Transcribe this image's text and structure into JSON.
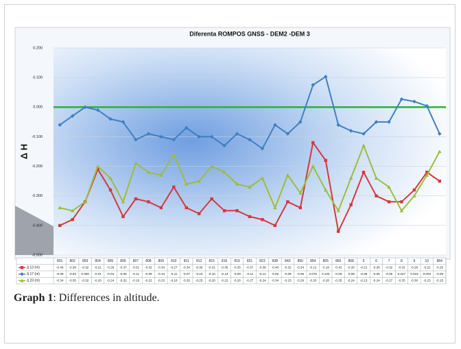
{
  "chart_data": {
    "type": "line",
    "title": "Diferenta  ROMPOS GNSS - DEM2 -DEM 3",
    "y_label": "Δ H",
    "categories": [
      "801",
      "802",
      "803",
      "804",
      "805",
      "806",
      "807",
      "808",
      "809",
      "810",
      "811",
      "812",
      "815",
      "816",
      "819",
      "821",
      "823",
      "838",
      "843",
      "850",
      "854",
      "855",
      "865",
      "868",
      "5",
      "6",
      "7",
      "8",
      "9",
      "10",
      "864"
    ],
    "series": [
      {
        "name": "Δ 13 (m)",
        "color": "#d2383c",
        "marker": "square",
        "values": [
          -0.4,
          -0.38,
          -0.32,
          -0.21,
          -0.28,
          -0.37,
          -0.31,
          -0.32,
          -0.34,
          -0.27,
          -0.34,
          -0.36,
          -0.31,
          -0.35,
          -0.35,
          -0.37,
          -0.38,
          -0.4,
          -0.32,
          -0.34,
          -0.12,
          -0.18,
          -0.42,
          -0.33,
          -0.22,
          -0.3,
          -0.32,
          -0.32,
          -0.28,
          -0.22,
          -0.25
        ],
        "value_labels": [
          "-0.40",
          "-0.38",
          "-0.32",
          "-0.21",
          "-0.28",
          "-0.37",
          "-0.31",
          "-0.32",
          "-0.34",
          "-0.27",
          "-0.34",
          "-0.36",
          "-0.31",
          "-0.35",
          "-0.35",
          "-0.37",
          "-0.38",
          "-0.40",
          "-0.32",
          "-0.34",
          "-0.12",
          "-0.18",
          "-0.42",
          "-0.33",
          "-0.22",
          "-0.30",
          "-0.32",
          "-0.32",
          "-0.28",
          "-0.22",
          "-0.25"
        ]
      },
      {
        "name": "Δ 17 (m)",
        "color": "#3f7fc2",
        "marker": "diamond",
        "values": [
          -0.06,
          -0.03,
          0,
          -0.01,
          -0.04,
          -0.05,
          -0.11,
          -0.09,
          -0.1,
          -0.11,
          -0.07,
          -0.1,
          -0.1,
          -0.13,
          -0.09,
          -0.11,
          -0.14,
          -0.06,
          -0.09,
          -0.05,
          0.075,
          0.103,
          -0.06,
          -0.08,
          -0.09,
          -0.05,
          -0.05,
          0.027,
          0.019,
          0.004,
          -0.09
        ],
        "value_labels": [
          "-0.06",
          "-0.03",
          "0.000",
          "-0.01",
          "-0.04",
          "-0.05",
          "-0.11",
          "-0.09",
          "-0.10",
          "-0.11",
          "-0.07",
          "-0.10",
          "-0.10",
          "-0.13",
          "-0.09",
          "-0.11",
          "-0.14",
          "-0.06",
          "-0.09",
          "-0.05",
          "0.075",
          "0.103",
          "-0.06",
          "-0.08",
          "-0.09",
          "-0.05",
          "-0.05",
          "0.027",
          "0.019",
          "0.004",
          "-0.09"
        ]
      },
      {
        "name": "Δ 23 (m)",
        "color": "#9cbc3e",
        "marker": "triangle",
        "values": [
          -0.34,
          -0.35,
          -0.32,
          -0.2,
          -0.24,
          -0.32,
          -0.19,
          -0.22,
          -0.23,
          -0.16,
          -0.26,
          -0.25,
          -0.2,
          -0.22,
          -0.26,
          -0.27,
          -0.24,
          -0.34,
          -0.23,
          -0.29,
          -0.2,
          -0.28,
          -0.35,
          -0.24,
          -0.13,
          -0.24,
          -0.27,
          -0.35,
          -0.3,
          -0.23,
          -0.15
        ],
        "value_labels": [
          "-0.34",
          "-0.35",
          "-0.32",
          "-0.20",
          "-0.24",
          "-0.32",
          "-0.19",
          "-0.22",
          "-0.23",
          "-0.16",
          "-0.26",
          "-0.25",
          "-0.20",
          "-0.22",
          "-0.26",
          "-0.27",
          "-0.24",
          "-0.34",
          "-0.23",
          "-0.29",
          "-0.20",
          "-0.28",
          "-0.35",
          "-0.24",
          "-0.13",
          "-0.24",
          "-0.27",
          "-0.35",
          "-0.30",
          "-0.23",
          "-0.15"
        ]
      }
    ],
    "ylim": [
      -0.5,
      0.2
    ],
    "yticks": [
      {
        "value": 0.2,
        "label": "0.200"
      },
      {
        "value": 0.1,
        "label": "0.100"
      },
      {
        "value": 0,
        "label": "0.000"
      },
      {
        "value": -0.1,
        "label": "-0.100"
      },
      {
        "value": -0.2,
        "label": "-0.200"
      },
      {
        "value": -0.3,
        "label": "-0.300"
      },
      {
        "value": -0.4,
        "label": "-0.400"
      },
      {
        "value": -0.5,
        "label": "-0.500"
      }
    ],
    "reference_line": {
      "value": 0,
      "color": "#2ab03a"
    },
    "grid": true
  },
  "caption": {
    "label": "Graph 1",
    "text": ": Differences in altitude."
  }
}
